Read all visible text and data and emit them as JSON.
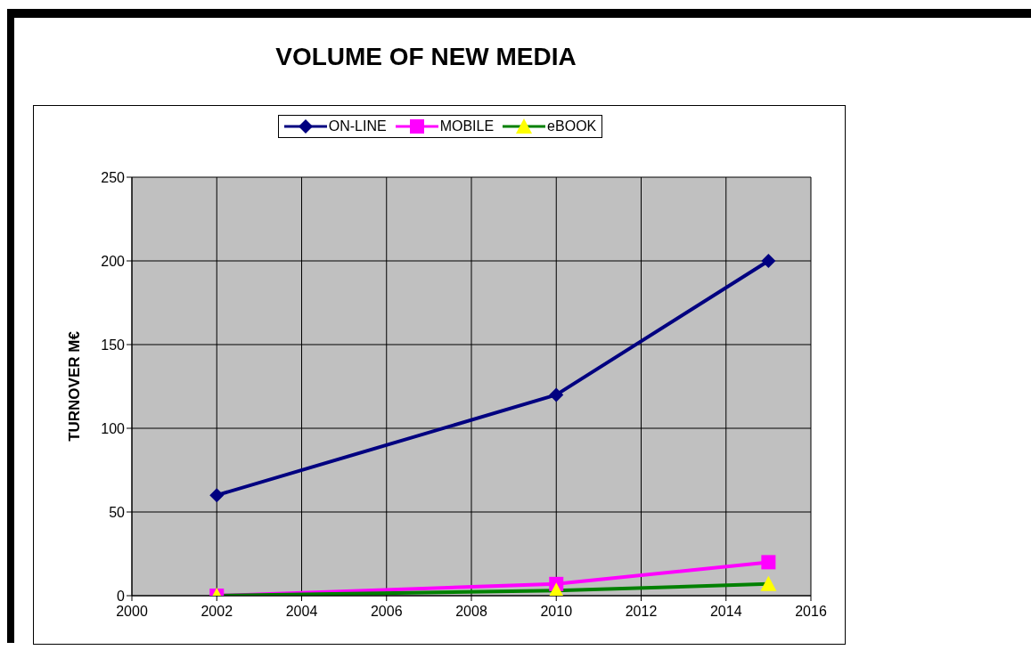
{
  "chart_data": {
    "type": "line",
    "title": "VOLUME OF NEW MEDIA",
    "ylabel": "TURNOVER M€",
    "xlim": [
      2000,
      2016
    ],
    "xticks": [
      2000,
      2002,
      2004,
      2006,
      2008,
      2010,
      2012,
      2014,
      2016
    ],
    "ylim": [
      0,
      250
    ],
    "yticks": [
      0,
      50,
      100,
      150,
      200,
      250
    ],
    "grid": true,
    "legend": "top",
    "x": [
      2002,
      2010,
      2015
    ],
    "series": [
      {
        "name": "ON-LINE",
        "color": "#000080",
        "marker": "diamond",
        "values": [
          60,
          120,
          200
        ]
      },
      {
        "name": "MOBILE",
        "color": "#ff00ff",
        "marker": "square",
        "values": [
          0,
          7,
          20
        ]
      },
      {
        "name": "eBOOK",
        "color": "#008000",
        "colors": [
          "#ffff00",
          "#ffff00",
          "#ffff00"
        ],
        "marker": "triangle",
        "values": [
          0,
          3,
          7
        ]
      }
    ]
  }
}
